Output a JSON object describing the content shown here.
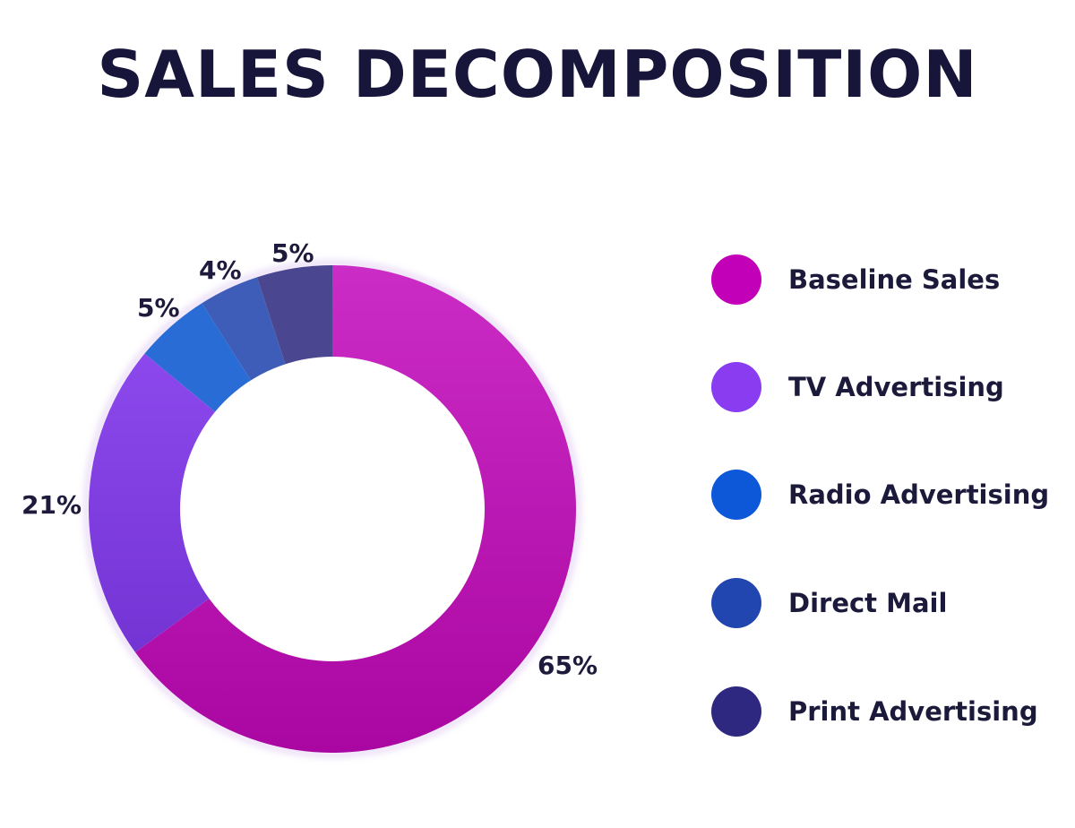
{
  "title": "SALES DECOMPOSITION",
  "chart_data": {
    "type": "pie",
    "variant": "donut",
    "title": "SALES DECOMPOSITION",
    "categories": [
      "Baseline Sales",
      "TV Advertising",
      "Radio Advertising",
      "Direct Mail",
      "Print Advertising"
    ],
    "values": [
      65,
      21,
      5,
      4,
      5
    ],
    "unit": "%",
    "colors": [
      "#c200b8",
      "#8a3cf0",
      "#0c58d8",
      "#2246b0",
      "#2e2880"
    ],
    "legend_position": "right"
  },
  "labels": {
    "baseline": "65%",
    "tv": "21%",
    "radio": "5%",
    "direct_mail": "4%",
    "print": "5%"
  },
  "legend": [
    {
      "label": "Baseline Sales",
      "color": "#c200b8"
    },
    {
      "label": "TV Advertising",
      "color": "#8a3cf0"
    },
    {
      "label": "Radio Advertising",
      "color": "#0c58d8"
    },
    {
      "label": "Direct Mail",
      "color": "#2246b0"
    },
    {
      "label": "Print Advertising",
      "color": "#2e2880"
    }
  ]
}
